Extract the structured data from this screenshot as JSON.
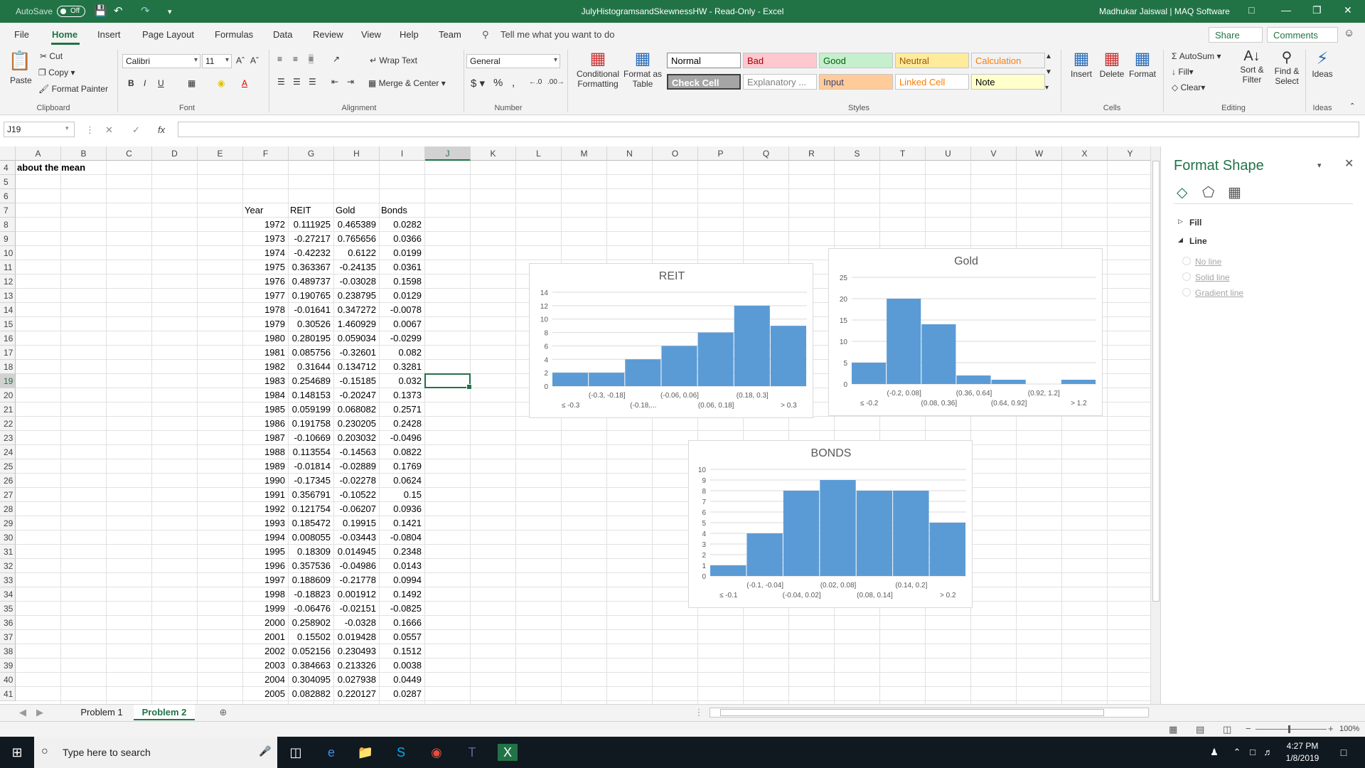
{
  "titlebar": {
    "autosave": "AutoSave",
    "toggle": "Off",
    "title": "JulyHistogramsandSkewnessHW  -  Read-Only  -  Excel",
    "user": "Madhukar Jaiswal | MAQ Software"
  },
  "tabs": [
    "File",
    "Home",
    "Insert",
    "Page Layout",
    "Formulas",
    "Data",
    "Review",
    "View",
    "Help",
    "Team"
  ],
  "tell_me": "Tell me what you want to do",
  "share": "Share",
  "comments": "Comments",
  "ribbon": {
    "paste": "Paste",
    "cut": "Cut",
    "copy": "Copy",
    "format_painter": "Format Painter",
    "clipboard": "Clipboard",
    "font_name": "Calibri",
    "font_size": "11",
    "font": "Font",
    "wrap_text": "Wrap Text",
    "merge_center": "Merge & Center",
    "alignment": "Alignment",
    "number_format": "General",
    "number": "Number",
    "conditional": "Conditional",
    "formatting": "Formatting",
    "format_as": "Format as",
    "table": "Table",
    "styles": "Styles",
    "style_cells": [
      {
        "label": "Normal",
        "bg": "#ffffff",
        "fg": "#000000"
      },
      {
        "label": "Bad",
        "bg": "#ffc7ce",
        "fg": "#9c0006"
      },
      {
        "label": "Good",
        "bg": "#c6efce",
        "fg": "#006100"
      },
      {
        "label": "Neutral",
        "bg": "#ffeb9c",
        "fg": "#9c5700"
      },
      {
        "label": "Calculation",
        "bg": "#f2f2f2",
        "fg": "#fa7d00"
      },
      {
        "label": "Check Cell",
        "bg": "#a5a5a5",
        "fg": "#ffffff"
      },
      {
        "label": "Explanatory ...",
        "bg": "#ffffff",
        "fg": "#7f7f7f"
      },
      {
        "label": "Input",
        "bg": "#ffcc99",
        "fg": "#3f3f76"
      },
      {
        "label": "Linked Cell",
        "bg": "#ffffff",
        "fg": "#fa7d00"
      },
      {
        "label": "Note",
        "bg": "#ffffcc",
        "fg": "#000000"
      }
    ],
    "insert": "Insert",
    "delete": "Delete",
    "format": "Format",
    "cells": "Cells",
    "autosum": "AutoSum",
    "fill": "Fill",
    "clear": "Clear",
    "sort_filter": "Sort &",
    "filter": "Filter",
    "find_select": "Find &",
    "select": "Select",
    "editing": "Editing",
    "ideas": "Ideas"
  },
  "namebox": "J19",
  "fx": "fx",
  "columns": [
    "A",
    "B",
    "C",
    "D",
    "E",
    "F",
    "G",
    "H",
    "I",
    "J",
    "K",
    "L",
    "M",
    "N",
    "O",
    "P",
    "Q",
    "R",
    "S",
    "T",
    "U",
    "V",
    "W",
    "X",
    "Y"
  ],
  "rows": [
    "4",
    "5",
    "6",
    "7",
    "8",
    "9",
    "10",
    "11",
    "12",
    "13",
    "14",
    "15",
    "16",
    "17",
    "18",
    "19",
    "20",
    "21",
    "22",
    "23",
    "24",
    "25",
    "26",
    "27",
    "28",
    "29",
    "30",
    "31",
    "32",
    "33",
    "34",
    "35",
    "36",
    "37",
    "38",
    "39",
    "40",
    "41"
  ],
  "a4_text": "about the mean",
  "table_headers": [
    "Year",
    "REIT",
    "Gold",
    "Bonds"
  ],
  "table_rows": [
    [
      "1972",
      "0.111925",
      "0.465389",
      "0.0282"
    ],
    [
      "1973",
      "-0.27217",
      "0.765656",
      "0.0366"
    ],
    [
      "1974",
      "-0.42232",
      "0.6122",
      "0.0199"
    ],
    [
      "1975",
      "0.363367",
      "-0.24135",
      "0.0361"
    ],
    [
      "1976",
      "0.489737",
      "-0.03028",
      "0.1598"
    ],
    [
      "1977",
      "0.190765",
      "0.238795",
      "0.0129"
    ],
    [
      "1978",
      "-0.01641",
      "0.347272",
      "-0.0078"
    ],
    [
      "1979",
      "0.30526",
      "1.460929",
      "0.0067"
    ],
    [
      "1980",
      "0.280195",
      "0.059034",
      "-0.0299"
    ],
    [
      "1981",
      "0.085756",
      "-0.32601",
      "0.082"
    ],
    [
      "1982",
      "0.31644",
      "0.134712",
      "0.3281"
    ],
    [
      "1983",
      "0.254689",
      "-0.15185",
      "0.032"
    ],
    [
      "1984",
      "0.148153",
      "-0.20247",
      "0.1373"
    ],
    [
      "1985",
      "0.059199",
      "0.068082",
      "0.2571"
    ],
    [
      "1986",
      "0.191758",
      "0.230205",
      "0.2428"
    ],
    [
      "1987",
      "-0.10669",
      "0.203032",
      "-0.0496"
    ],
    [
      "1988",
      "0.113554",
      "-0.14563",
      "0.0822"
    ],
    [
      "1989",
      "-0.01814",
      "-0.02889",
      "0.1769"
    ],
    [
      "1990",
      "-0.17345",
      "-0.02278",
      "0.0624"
    ],
    [
      "1991",
      "0.356791",
      "-0.10522",
      "0.15"
    ],
    [
      "1992",
      "0.121754",
      "-0.06207",
      "0.0936"
    ],
    [
      "1993",
      "0.185472",
      "0.19915",
      "0.1421"
    ],
    [
      "1994",
      "0.008055",
      "-0.03443",
      "-0.0804"
    ],
    [
      "1995",
      "0.18309",
      "0.014945",
      "0.2348"
    ],
    [
      "1996",
      "0.357536",
      "-0.04986",
      "0.0143"
    ],
    [
      "1997",
      "0.188609",
      "-0.21778",
      "0.0994"
    ],
    [
      "1998",
      "-0.18823",
      "0.001912",
      "0.1492"
    ],
    [
      "1999",
      "-0.06476",
      "-0.02151",
      "-0.0825"
    ],
    [
      "2000",
      "0.258902",
      "-0.0328",
      "0.1666"
    ],
    [
      "2001",
      "0.15502",
      "0.019428",
      "0.0557"
    ],
    [
      "2002",
      "0.052156",
      "0.230493",
      "0.1512"
    ],
    [
      "2003",
      "0.384663",
      "0.213326",
      "0.0038"
    ],
    [
      "2004",
      "0.304095",
      "0.027938",
      "0.0449"
    ],
    [
      "2005",
      "0.082882",
      "0.220127",
      "0.0287"
    ]
  ],
  "chart_data": [
    {
      "type": "bar",
      "title": "REIT",
      "categories": [
        "≤ -0.3",
        "(-0.3, -0.18]",
        "(-0.18,...",
        "(-0.06, 0.06]",
        "(0.06, 0.18]",
        "(0.18, 0.3]",
        "> 0.3"
      ],
      "values": [
        2,
        2,
        4,
        6,
        8,
        12,
        9
      ],
      "ylim": [
        0,
        14
      ],
      "yticks": [
        0,
        2,
        4,
        6,
        8,
        10,
        12,
        14
      ],
      "color": "#5b9bd5"
    },
    {
      "type": "bar",
      "title": "Gold",
      "categories": [
        "≤ -0.2",
        "(-0.2, 0.08]",
        "(0.08, 0.36]",
        "(0.36, 0.64]",
        "(0.64, 0.92]",
        "(0.92, 1.2]",
        "> 1.2"
      ],
      "values": [
        5,
        20,
        14,
        2,
        1,
        0,
        1
      ],
      "ylim": [
        0,
        25
      ],
      "yticks": [
        0,
        5,
        10,
        15,
        20,
        25
      ],
      "color": "#5b9bd5"
    },
    {
      "type": "bar",
      "title": "BONDS",
      "categories": [
        "≤ -0.1",
        "(-0.1, -0.04]",
        "(-0.04, 0.02]",
        "(0.02, 0.08]",
        "(0.08, 0.14]",
        "(0.14, 0.2]",
        "> 0.2"
      ],
      "values": [
        1,
        4,
        8,
        9,
        8,
        8,
        5
      ],
      "ylim": [
        0,
        10
      ],
      "yticks": [
        0,
        1,
        2,
        3,
        4,
        5,
        6,
        7,
        8,
        9,
        10
      ],
      "color": "#5b9bd5"
    }
  ],
  "pane": {
    "title": "Format Shape",
    "fill": "Fill",
    "line": "Line",
    "options": [
      "No line",
      "Solid line",
      "Gradient line"
    ]
  },
  "sheet_tabs": [
    "Problem 1",
    "Problem 2"
  ],
  "status": {
    "zoom": "100%"
  },
  "taskbar": {
    "search": "Type here to search",
    "time": "4:27 PM",
    "date": "1/8/2019"
  }
}
